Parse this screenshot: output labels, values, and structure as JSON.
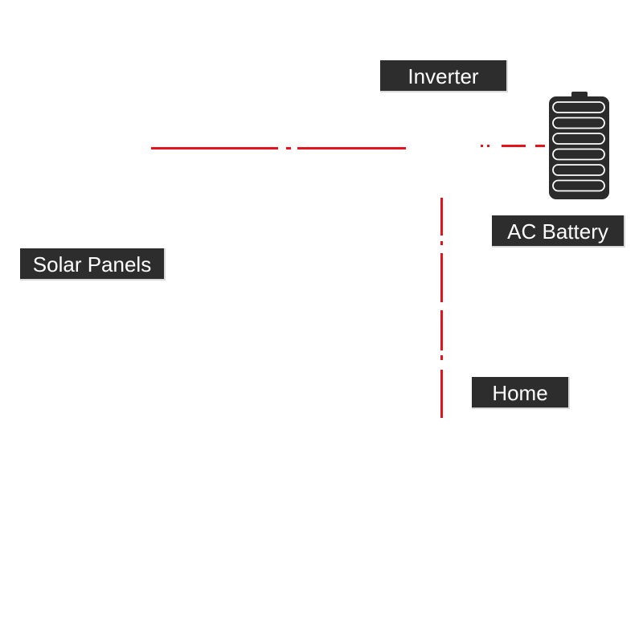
{
  "diagram": {
    "nodes": {
      "inverter": {
        "label": "Inverter"
      },
      "battery": {
        "label": "AC Battery",
        "icon": "battery-icon"
      },
      "solar": {
        "label": "Solar Panels"
      },
      "home": {
        "label": "Home"
      }
    },
    "connections": [
      {
        "from": "solar",
        "to": "inverter",
        "style": "red flow line"
      },
      {
        "from": "inverter",
        "to": "battery",
        "style": "red flow line"
      },
      {
        "from": "inverter",
        "to": "home",
        "style": "red flow line"
      }
    ]
  },
  "colors": {
    "wire": "#e3141b",
    "label_bg": "#2d2d2d",
    "label_text": "#ffffff",
    "battery_body": "#2b2b2b",
    "background": "#ffffff"
  }
}
